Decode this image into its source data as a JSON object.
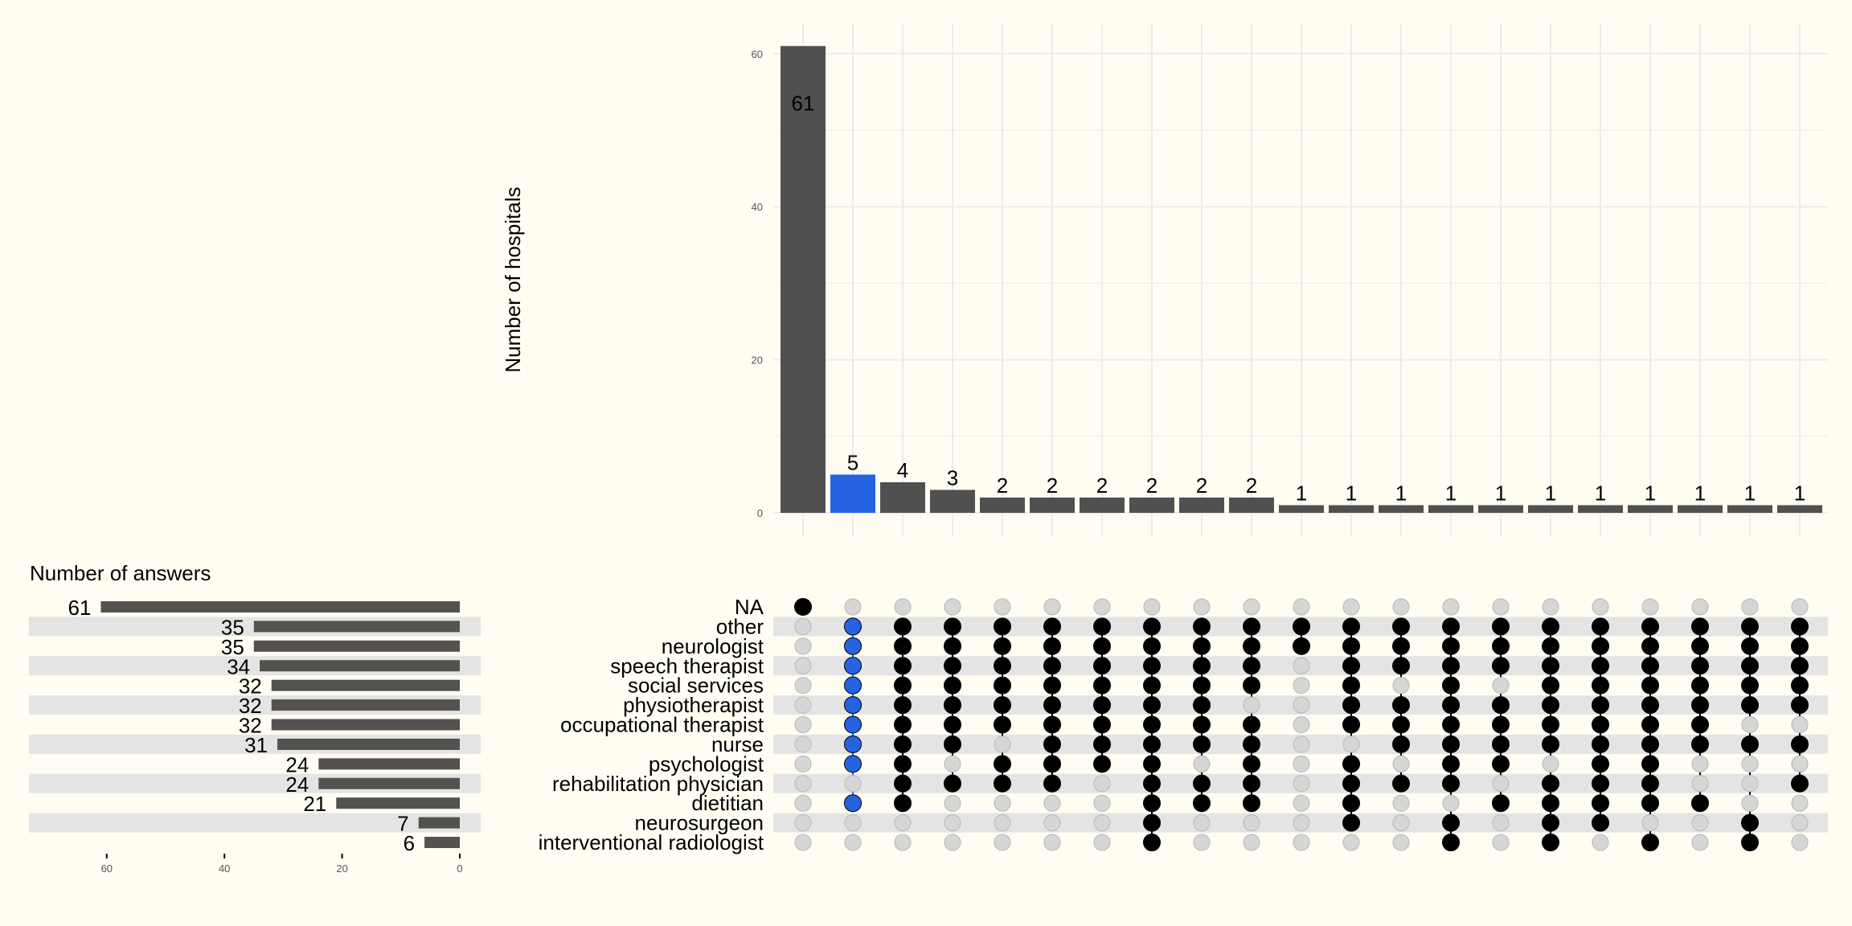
{
  "chart_data": {
    "type": "upset",
    "top_bar": {
      "ylabel": "Number of hospitals",
      "ylim": [
        0,
        61
      ],
      "yticks": [
        0,
        20,
        40,
        60
      ],
      "values": [
        61,
        5,
        4,
        3,
        2,
        2,
        2,
        2,
        2,
        2,
        1,
        1,
        1,
        1,
        1,
        1,
        1,
        1,
        1,
        1,
        1
      ],
      "highlight_index": 1,
      "grid": true
    },
    "set_sizes": {
      "title": "Number of answers",
      "xticks": [
        60,
        40,
        20,
        0
      ],
      "xlim": [
        0,
        61
      ],
      "sets": [
        "NA",
        "other",
        "neurologist",
        "speech therapist",
        "social services",
        "physiotherapist",
        "occupational therapist",
        "nurse",
        "psychologist",
        "rehabilitation physician",
        "dietitian",
        "neurosurgeon",
        "interventional radiologist"
      ],
      "values": [
        61,
        35,
        35,
        34,
        32,
        32,
        32,
        31,
        24,
        24,
        21,
        7,
        6
      ]
    },
    "matrix": {
      "intersections": [
        [
          0
        ],
        [
          1,
          2,
          3,
          4,
          5,
          6,
          7,
          8,
          10
        ],
        [
          1,
          2,
          3,
          4,
          5,
          6,
          7,
          8,
          9,
          10
        ],
        [
          1,
          2,
          3,
          4,
          5,
          6,
          7,
          9
        ],
        [
          1,
          2,
          3,
          4,
          5,
          6,
          8,
          9
        ],
        [
          1,
          2,
          3,
          4,
          5,
          6,
          7,
          8,
          9
        ],
        [
          1,
          2,
          3,
          4,
          5,
          6,
          7,
          8
        ],
        [
          1,
          2,
          3,
          4,
          5,
          6,
          7,
          8,
          9,
          10,
          11,
          12
        ],
        [
          1,
          2,
          3,
          4,
          5,
          6,
          7,
          9,
          10
        ],
        [
          1,
          2,
          3,
          4,
          6,
          7,
          8,
          9,
          10
        ],
        [
          1,
          2
        ],
        [
          1,
          2,
          3,
          4,
          5,
          6,
          8,
          9,
          10,
          11
        ],
        [
          1,
          2,
          3,
          5,
          6,
          7,
          9
        ],
        [
          1,
          2,
          3,
          4,
          5,
          6,
          7,
          8,
          9,
          11,
          12
        ],
        [
          1,
          2,
          3,
          5,
          6,
          7,
          8,
          10
        ],
        [
          1,
          2,
          3,
          4,
          5,
          6,
          7,
          9,
          10,
          11,
          12
        ],
        [
          1,
          2,
          3,
          4,
          5,
          6,
          7,
          8,
          9,
          10,
          11
        ],
        [
          1,
          2,
          3,
          4,
          5,
          6,
          7,
          8,
          9,
          10,
          12
        ],
        [
          1,
          2,
          3,
          4,
          5,
          6,
          7,
          10
        ],
        [
          1,
          2,
          3,
          4,
          5,
          7,
          11,
          12
        ],
        [
          1,
          2,
          3,
          4,
          5,
          7,
          9
        ]
      ]
    },
    "colors": {
      "bar": "#505050",
      "set_bar": "#53524e",
      "highlight": "#2563e0",
      "dot_on": "#000000",
      "dot_off": "#d6d6d6",
      "band": "#e4e4e4",
      "grid": "#ebebeb",
      "background": "#fffdf2"
    }
  }
}
